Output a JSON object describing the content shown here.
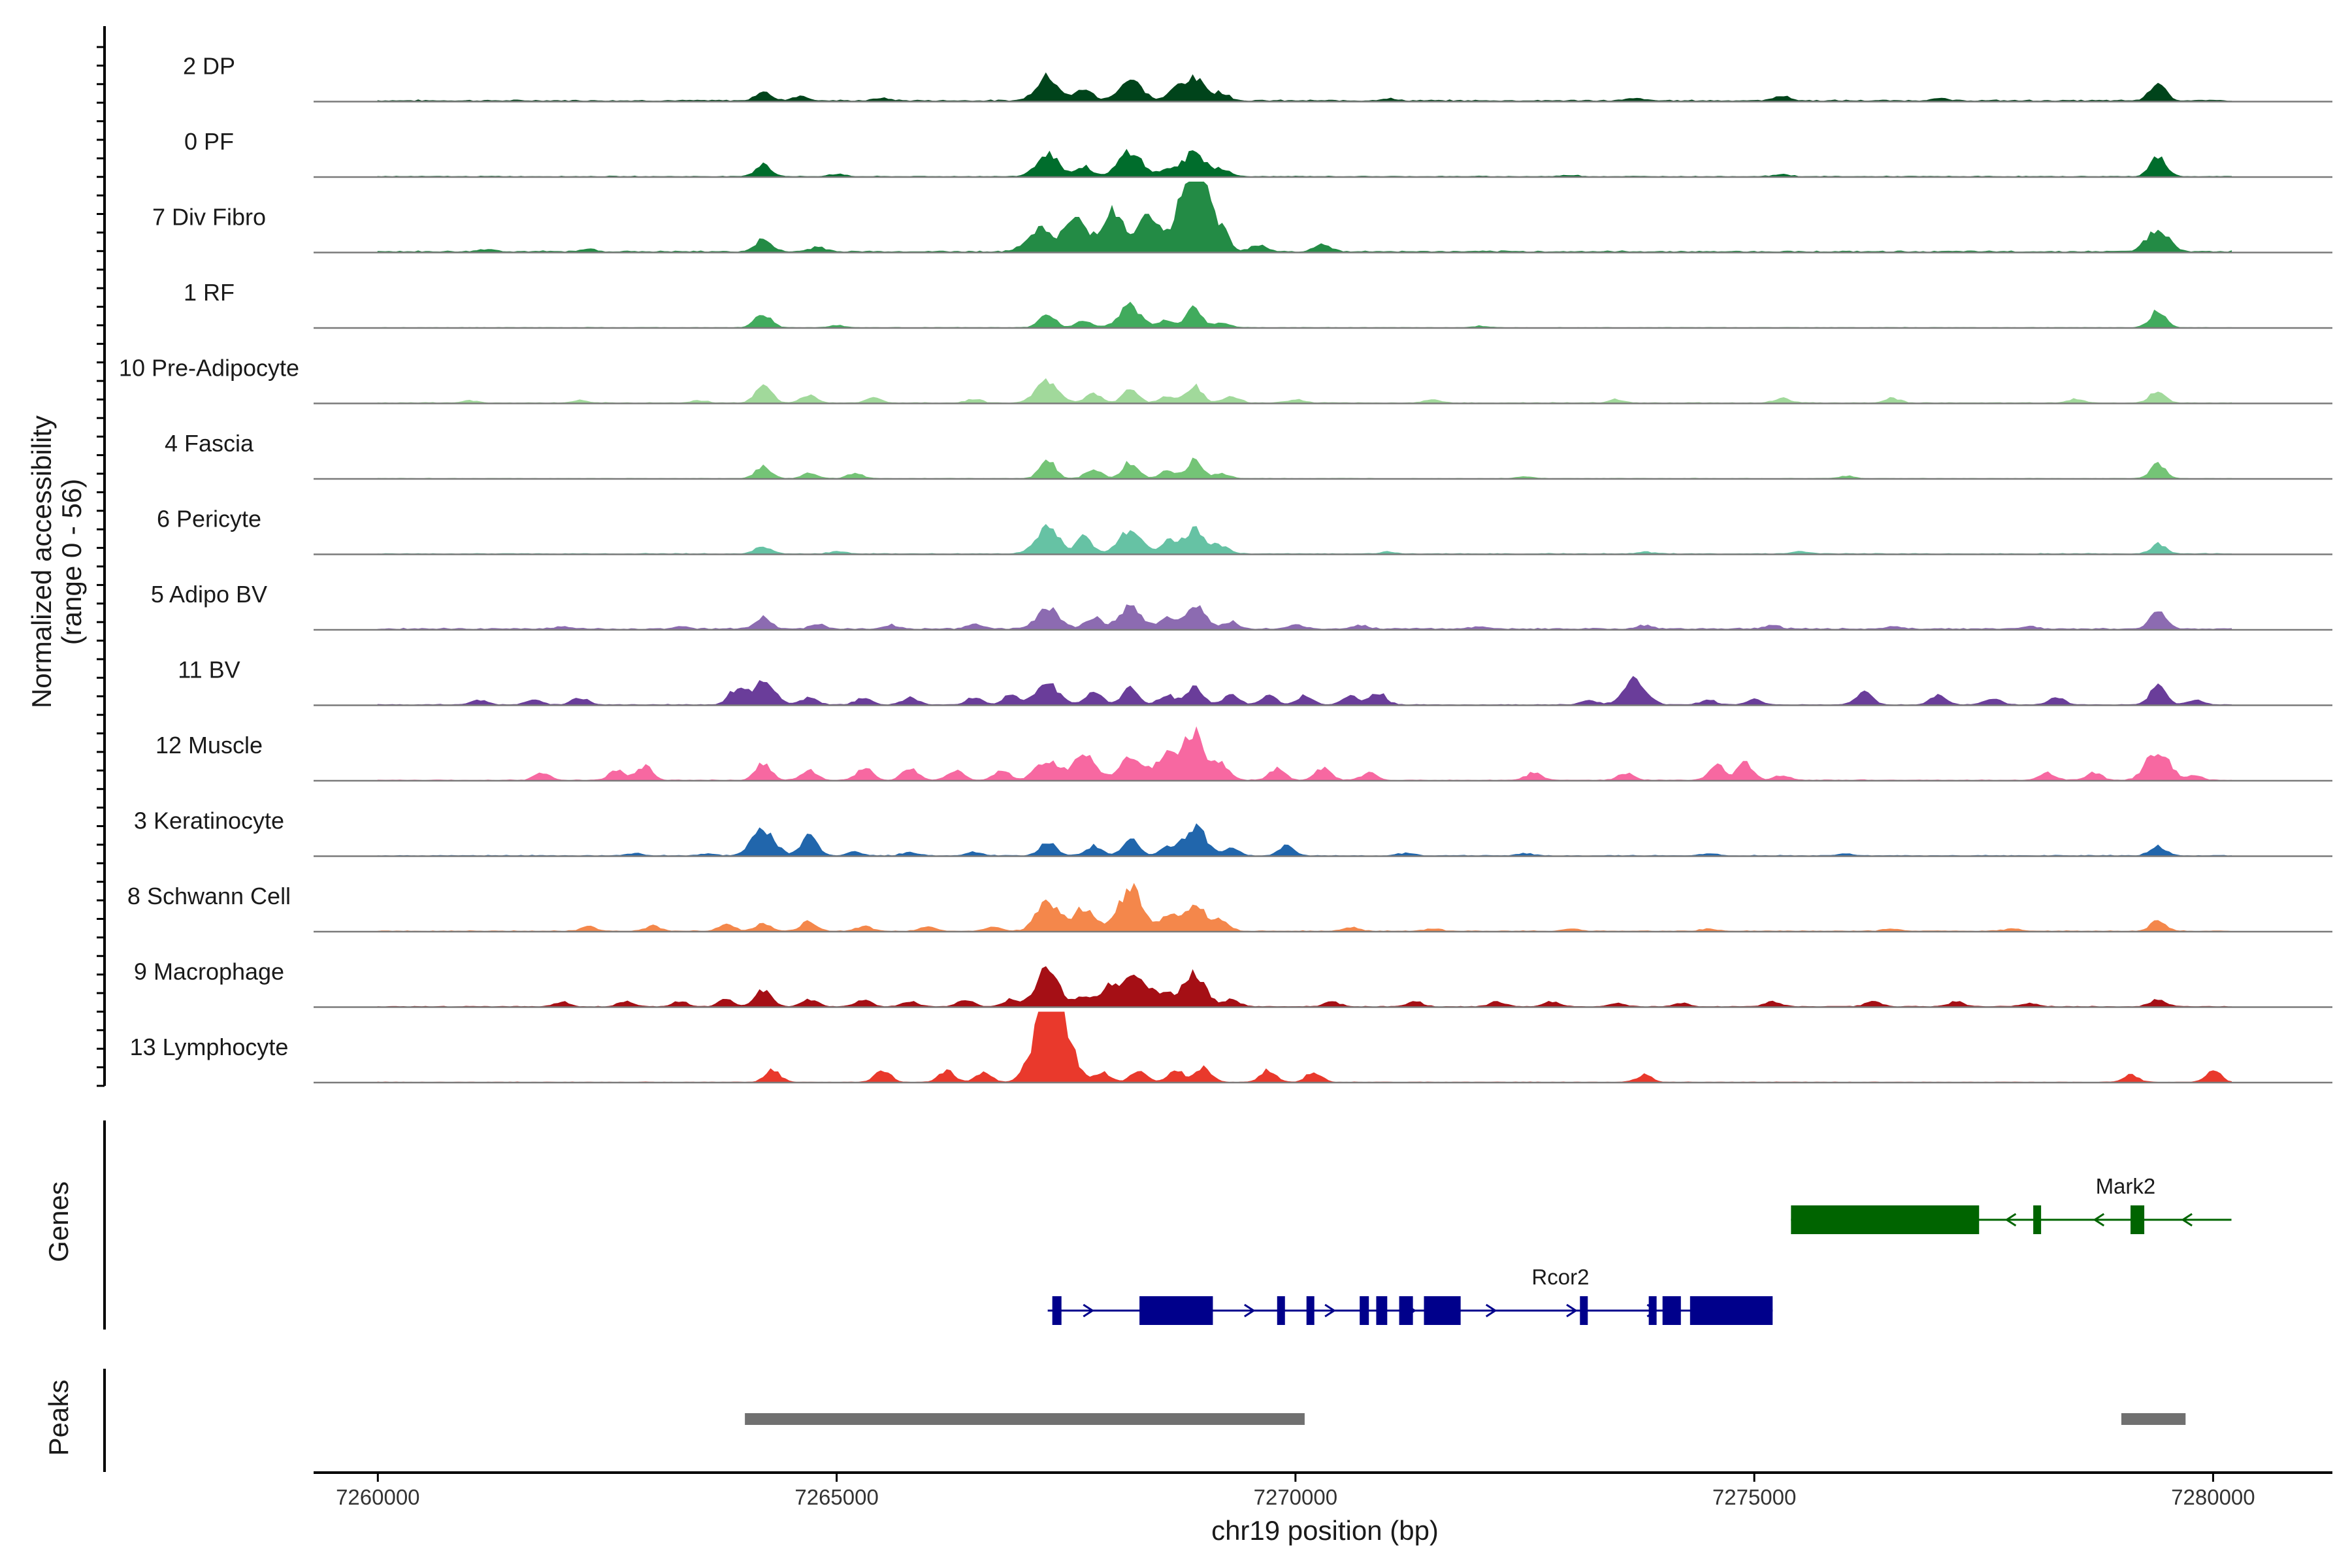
{
  "chart_data": {
    "type": "area",
    "chromosome": "chr19",
    "xlabel": "chr19 position (bp)",
    "xlim": [
      7259300,
      7281300
    ],
    "xticks": [
      7260000,
      7265000,
      7270000,
      7275000,
      7280000
    ],
    "xtick_labels": [
      "7260000",
      "7265000",
      "7270000",
      "7275000",
      "7280000"
    ],
    "coverage_ylabel_line1": "Normalized accessibility",
    "coverage_ylabel_line2": "(range 0 - 56)",
    "ylim": [
      0,
      56
    ],
    "tracks": [
      {
        "name": "2 DP",
        "color": "#00441b",
        "base": 0.5,
        "peaks": [
          [
            7264200,
            3.5
          ],
          [
            7264600,
            2
          ],
          [
            7265500,
            1
          ],
          [
            7267300,
            10
          ],
          [
            7267700,
            5
          ],
          [
            7268200,
            9
          ],
          [
            7268700,
            4
          ],
          [
            7268900,
            9
          ],
          [
            7269200,
            3
          ],
          [
            7271000,
            0.8
          ],
          [
            7273700,
            1
          ],
          [
            7275300,
            2
          ],
          [
            7277000,
            1
          ],
          [
            7279400,
            8
          ]
        ]
      },
      {
        "name": "0 PF",
        "color": "#006d2c",
        "base": 0.3,
        "peaks": [
          [
            7264200,
            5
          ],
          [
            7265000,
            1
          ],
          [
            7267300,
            10
          ],
          [
            7267700,
            4
          ],
          [
            7268200,
            11
          ],
          [
            7268600,
            3
          ],
          [
            7268900,
            10
          ],
          [
            7269200,
            3
          ],
          [
            7273000,
            0.6
          ],
          [
            7275300,
            1
          ],
          [
            7279400,
            8
          ]
        ]
      },
      {
        "name": "7 Div Fibro",
        "color": "#238b45",
        "base": 0.5,
        "peaks": [
          [
            7261200,
            1
          ],
          [
            7262300,
            1
          ],
          [
            7264200,
            5
          ],
          [
            7264800,
            2
          ],
          [
            7267200,
            10
          ],
          [
            7267600,
            14
          ],
          [
            7268000,
            17
          ],
          [
            7268400,
            14
          ],
          [
            7268800,
            18
          ],
          [
            7268950,
            28
          ],
          [
            7269200,
            8
          ],
          [
            7269600,
            3
          ],
          [
            7270300,
            3
          ],
          [
            7279400,
            9
          ]
        ]
      },
      {
        "name": "1 RF",
        "color": "#41ab5d",
        "base": 0.2,
        "peaks": [
          [
            7264200,
            6
          ],
          [
            7265000,
            1
          ],
          [
            7267300,
            6
          ],
          [
            7267700,
            3
          ],
          [
            7268200,
            9
          ],
          [
            7268600,
            3
          ],
          [
            7268900,
            8
          ],
          [
            7269200,
            2
          ],
          [
            7272000,
            0.6
          ],
          [
            7279400,
            7
          ]
        ]
      },
      {
        "name": "10 Pre-Adipocyte",
        "color": "#a1d99b",
        "base": 0.3,
        "peaks": [
          [
            7261000,
            1
          ],
          [
            7262200,
            1
          ],
          [
            7263500,
            1
          ],
          [
            7264200,
            8
          ],
          [
            7264700,
            3
          ],
          [
            7265400,
            2
          ],
          [
            7266500,
            1.5
          ],
          [
            7267300,
            9
          ],
          [
            7267800,
            4
          ],
          [
            7268200,
            5
          ],
          [
            7268600,
            3
          ],
          [
            7268900,
            7
          ],
          [
            7269300,
            3
          ],
          [
            7270000,
            1.5
          ],
          [
            7271500,
            1.5
          ],
          [
            7273500,
            1.5
          ],
          [
            7275300,
            2
          ],
          [
            7276500,
            2
          ],
          [
            7278500,
            1.5
          ],
          [
            7279400,
            5
          ]
        ]
      },
      {
        "name": "4 Fascia",
        "color": "#74c476",
        "base": 0.2,
        "peaks": [
          [
            7264200,
            5
          ],
          [
            7264700,
            2
          ],
          [
            7265200,
            2
          ],
          [
            7267300,
            8
          ],
          [
            7267800,
            4
          ],
          [
            7268200,
            7
          ],
          [
            7268600,
            3
          ],
          [
            7268900,
            8
          ],
          [
            7269200,
            2
          ],
          [
            7272500,
            0.8
          ],
          [
            7276000,
            1
          ],
          [
            7279400,
            6
          ]
        ]
      },
      {
        "name": "6 Pericyte",
        "color": "#66c2a4",
        "base": 0.3,
        "peaks": [
          [
            7264200,
            3
          ],
          [
            7265000,
            1
          ],
          [
            7267300,
            11
          ],
          [
            7267700,
            7
          ],
          [
            7268200,
            10
          ],
          [
            7268600,
            5
          ],
          [
            7268900,
            10
          ],
          [
            7269200,
            3
          ],
          [
            7271000,
            0.8
          ],
          [
            7273800,
            0.8
          ],
          [
            7275500,
            1
          ],
          [
            7279400,
            4
          ]
        ]
      },
      {
        "name": "5 Adipo BV",
        "color": "#8c6bb1",
        "base": 0.5,
        "peaks": [
          [
            7262000,
            1
          ],
          [
            7263300,
            1
          ],
          [
            7264200,
            5
          ],
          [
            7264800,
            2
          ],
          [
            7265600,
            1.5
          ],
          [
            7266500,
            2
          ],
          [
            7267300,
            9
          ],
          [
            7267800,
            5
          ],
          [
            7268200,
            9
          ],
          [
            7268600,
            4
          ],
          [
            7268900,
            9
          ],
          [
            7269300,
            3
          ],
          [
            7270000,
            2
          ],
          [
            7270700,
            1.5
          ],
          [
            7272000,
            1
          ],
          [
            7273800,
            1.5
          ],
          [
            7275200,
            1.5
          ],
          [
            7276500,
            1
          ],
          [
            7278000,
            1
          ],
          [
            7279400,
            7
          ]
        ]
      },
      {
        "name": "11 BV",
        "color": "#6a3d9a",
        "base": 0.3,
        "peaks": [
          [
            7261100,
            2
          ],
          [
            7261700,
            2
          ],
          [
            7262200,
            3
          ],
          [
            7263900,
            6
          ],
          [
            7264200,
            10
          ],
          [
            7264700,
            3
          ],
          [
            7265300,
            3
          ],
          [
            7265800,
            3
          ],
          [
            7266500,
            3
          ],
          [
            7266900,
            4
          ],
          [
            7267300,
            9
          ],
          [
            7267800,
            6
          ],
          [
            7268200,
            7
          ],
          [
            7268600,
            4
          ],
          [
            7268900,
            8
          ],
          [
            7269300,
            4
          ],
          [
            7269700,
            4
          ],
          [
            7270100,
            4
          ],
          [
            7270600,
            4
          ],
          [
            7270900,
            5
          ],
          [
            7273200,
            2
          ],
          [
            7273700,
            10
          ],
          [
            7274500,
            2
          ],
          [
            7275000,
            2
          ],
          [
            7276200,
            6
          ],
          [
            7277000,
            4
          ],
          [
            7277600,
            3
          ],
          [
            7278300,
            3
          ],
          [
            7279400,
            8
          ],
          [
            7279800,
            2
          ]
        ]
      },
      {
        "name": "12 Muscle",
        "color": "#f768a1",
        "base": 0.3,
        "peaks": [
          [
            7261800,
            3
          ],
          [
            7262600,
            4
          ],
          [
            7262900,
            6
          ],
          [
            7264200,
            7
          ],
          [
            7264700,
            4
          ],
          [
            7265300,
            5
          ],
          [
            7265800,
            5
          ],
          [
            7266300,
            4
          ],
          [
            7266800,
            4
          ],
          [
            7267300,
            9
          ],
          [
            7267700,
            10
          ],
          [
            7268200,
            9
          ],
          [
            7268600,
            11
          ],
          [
            7268900,
            19
          ],
          [
            7269200,
            6
          ],
          [
            7269800,
            5
          ],
          [
            7270300,
            5
          ],
          [
            7270800,
            3
          ],
          [
            7272600,
            3
          ],
          [
            7273600,
            3
          ],
          [
            7274600,
            6
          ],
          [
            7274900,
            7
          ],
          [
            7275300,
            2
          ],
          [
            7278200,
            3
          ],
          [
            7278700,
            3
          ],
          [
            7279400,
            13
          ],
          [
            7279800,
            2
          ]
        ]
      },
      {
        "name": "3 Keratinocyte",
        "color": "#2166ac",
        "base": 0.3,
        "peaks": [
          [
            7262800,
            0.8
          ],
          [
            7263600,
            0.8
          ],
          [
            7264200,
            11
          ],
          [
            7264700,
            8
          ],
          [
            7265200,
            1.5
          ],
          [
            7265800,
            1.5
          ],
          [
            7266500,
            1.5
          ],
          [
            7267300,
            6
          ],
          [
            7267800,
            4
          ],
          [
            7268200,
            7
          ],
          [
            7268600,
            3
          ],
          [
            7268900,
            12
          ],
          [
            7269300,
            3
          ],
          [
            7269900,
            4
          ],
          [
            7271200,
            1
          ],
          [
            7272500,
            0.8
          ],
          [
            7274500,
            0.8
          ],
          [
            7276000,
            0.8
          ],
          [
            7279400,
            4
          ]
        ]
      },
      {
        "name": "8 Schwann Cell",
        "color": "#f4874b",
        "base": 0.3,
        "peaks": [
          [
            7262300,
            2
          ],
          [
            7263000,
            2
          ],
          [
            7263800,
            3
          ],
          [
            7264200,
            3
          ],
          [
            7264700,
            4
          ],
          [
            7265300,
            2
          ],
          [
            7266000,
            2
          ],
          [
            7266700,
            2
          ],
          [
            7267300,
            12
          ],
          [
            7267700,
            10
          ],
          [
            7268200,
            18
          ],
          [
            7268600,
            7
          ],
          [
            7268900,
            12
          ],
          [
            7269200,
            4
          ],
          [
            7270600,
            1.5
          ],
          [
            7271500,
            1
          ],
          [
            7273000,
            1
          ],
          [
            7274500,
            1
          ],
          [
            7276500,
            1
          ],
          [
            7277800,
            1
          ],
          [
            7279400,
            4
          ]
        ]
      },
      {
        "name": "9 Macrophage",
        "color": "#a50f15",
        "base": 0.3,
        "peaks": [
          [
            7262000,
            2
          ],
          [
            7262700,
            2
          ],
          [
            7263300,
            2
          ],
          [
            7263800,
            3
          ],
          [
            7264200,
            7
          ],
          [
            7264700,
            3
          ],
          [
            7265300,
            3
          ],
          [
            7265800,
            2
          ],
          [
            7266400,
            3
          ],
          [
            7266900,
            3
          ],
          [
            7267300,
            16
          ],
          [
            7267700,
            4
          ],
          [
            7268000,
            10
          ],
          [
            7268300,
            12
          ],
          [
            7268600,
            5
          ],
          [
            7268900,
            14
          ],
          [
            7269300,
            3
          ],
          [
            7270400,
            2
          ],
          [
            7271300,
            2
          ],
          [
            7272200,
            2
          ],
          [
            7272800,
            2
          ],
          [
            7273500,
            1.5
          ],
          [
            7274200,
            1.5
          ],
          [
            7275200,
            2
          ],
          [
            7276300,
            2
          ],
          [
            7277200,
            2
          ],
          [
            7278000,
            1.5
          ],
          [
            7279400,
            3
          ]
        ]
      },
      {
        "name": "13 Lymphocyte",
        "color": "#e9392c",
        "base": 0.2,
        "peaks": [
          [
            7264300,
            5
          ],
          [
            7265500,
            5
          ],
          [
            7266200,
            5
          ],
          [
            7266600,
            4
          ],
          [
            7267200,
            14
          ],
          [
            7267350,
            27
          ],
          [
            7267500,
            12
          ],
          [
            7267900,
            4
          ],
          [
            7268300,
            5
          ],
          [
            7268700,
            5
          ],
          [
            7269000,
            6
          ],
          [
            7269700,
            5
          ],
          [
            7270200,
            4
          ],
          [
            7273800,
            3
          ],
          [
            7279100,
            3
          ],
          [
            7280000,
            5
          ]
        ]
      }
    ],
    "genes_label": "Genes",
    "genes": [
      {
        "name": "Mark2",
        "color": "#006400",
        "start": 7275400,
        "end": 7280200,
        "strand": "-",
        "exons": [
          [
            7275400,
            7277450
          ],
          [
            7278040,
            7278090
          ],
          [
            7279100,
            7279250
          ]
        ]
      },
      {
        "name": "Rcor2",
        "color": "#00008b",
        "start": 7267300,
        "end": 7275200,
        "strand": "+",
        "exons": [
          [
            7267350,
            7267450
          ],
          [
            7268300,
            7269100
          ],
          [
            7269800,
            7269860
          ],
          [
            7270120,
            7270200
          ],
          [
            7270700,
            7270800
          ],
          [
            7270880,
            7271000
          ],
          [
            7271130,
            7271280
          ],
          [
            7271400,
            7271800
          ],
          [
            7273100,
            7273180
          ],
          [
            7273850,
            7273920
          ],
          [
            7274000,
            7274200
          ],
          [
            7274300,
            7275200
          ]
        ]
      }
    ],
    "peaks_label": "Peaks",
    "peak_regions": [
      [
        7264000,
        7270100
      ],
      [
        7279000,
        7279700
      ]
    ]
  }
}
